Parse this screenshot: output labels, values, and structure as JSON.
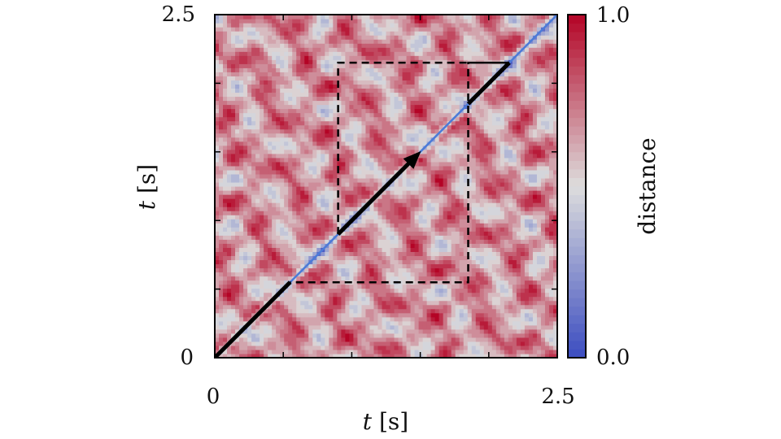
{
  "chart_data": {
    "type": "heatmap",
    "title": "",
    "xlabel": {
      "var": "t",
      "unit": "[s]"
    },
    "ylabel": {
      "var": "t",
      "unit": "[s]"
    },
    "xlim": [
      0,
      2.5
    ],
    "ylim": [
      0,
      2.5
    ],
    "x_tick_labels": [
      "0",
      "2.5"
    ],
    "y_tick_labels": [
      "0",
      "2.5"
    ],
    "colorbar": {
      "label": "distance",
      "range": [
        0.0,
        1.0
      ],
      "tick_labels": [
        "0.0",
        "1.0"
      ],
      "colormap": "coolwarm",
      "low_color": "#3b4cc0",
      "mid_color": "#dddddd",
      "high_color": "#b40426"
    },
    "annotations": {
      "dashed_window": {
        "t_start": 0.55,
        "t_end": 1.85,
        "t_top": 2.15,
        "t_left": 0.9
      },
      "diagonal_path": [
        [
          0,
          0
        ],
        [
          0.55,
          0.55
        ],
        [
          0.9,
          0.9
        ],
        [
          1.5,
          1.5
        ],
        [
          1.85,
          1.85
        ],
        [
          2.15,
          2.15
        ]
      ],
      "arrow_head_at": [
        1.45,
        1.45
      ]
    }
  }
}
